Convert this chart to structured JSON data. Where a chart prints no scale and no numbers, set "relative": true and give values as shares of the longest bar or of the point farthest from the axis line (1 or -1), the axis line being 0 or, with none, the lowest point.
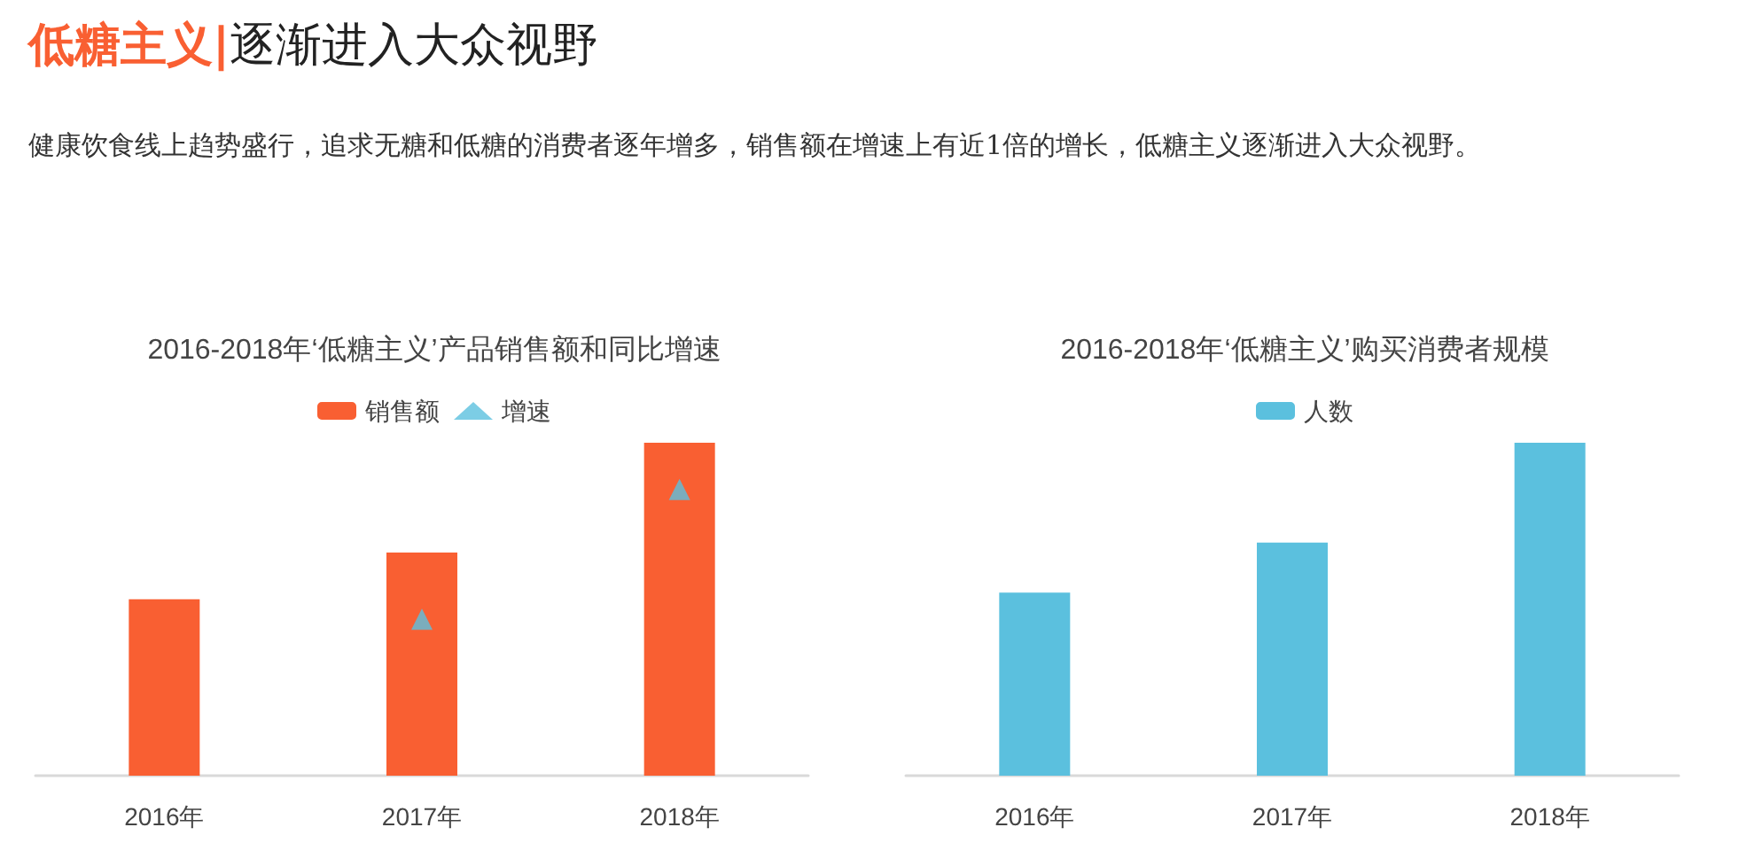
{
  "chart_data": [
    {
      "type": "other",
      "title": "低糖主义|逐渐进入大众视野",
      "subtitle": "健康饮食线上趋势盛行，追求无糖和低糖的消费者逐年增多，销售额在增速上有近1倍的增长，低糖主义逐渐进入大众视野。",
      "color": "#f95f32"
    },
    {
      "type": "bar",
      "title": "2016-2018年‘低糖主义’产品销售额和同比增速",
      "categories": [
        "2016年",
        "2017年",
        "2018年"
      ],
      "relative": true,
      "legend": "top",
      "series": [
        {
          "name": "销售额",
          "color": "#f95f32",
          "values": [
            0.53,
            0.67,
            1
          ]
        },
        {
          "name": "增速",
          "type": "scatter",
          "marker": "triangle",
          "color": "#5bc0de",
          "values": [
            null,
            0.47,
            0.86
          ]
        }
      ]
    },
    {
      "type": "bar",
      "title": "2016-2018年‘低糖主义’购买消费者规模",
      "categories": [
        "2016年",
        "2017年",
        "2018年"
      ],
      "relative": true,
      "legend": "top",
      "series": [
        {
          "name": "人数",
          "color": "#5bc0de",
          "values": [
            0.55,
            0.7,
            1
          ]
        }
      ]
    }
  ]
}
